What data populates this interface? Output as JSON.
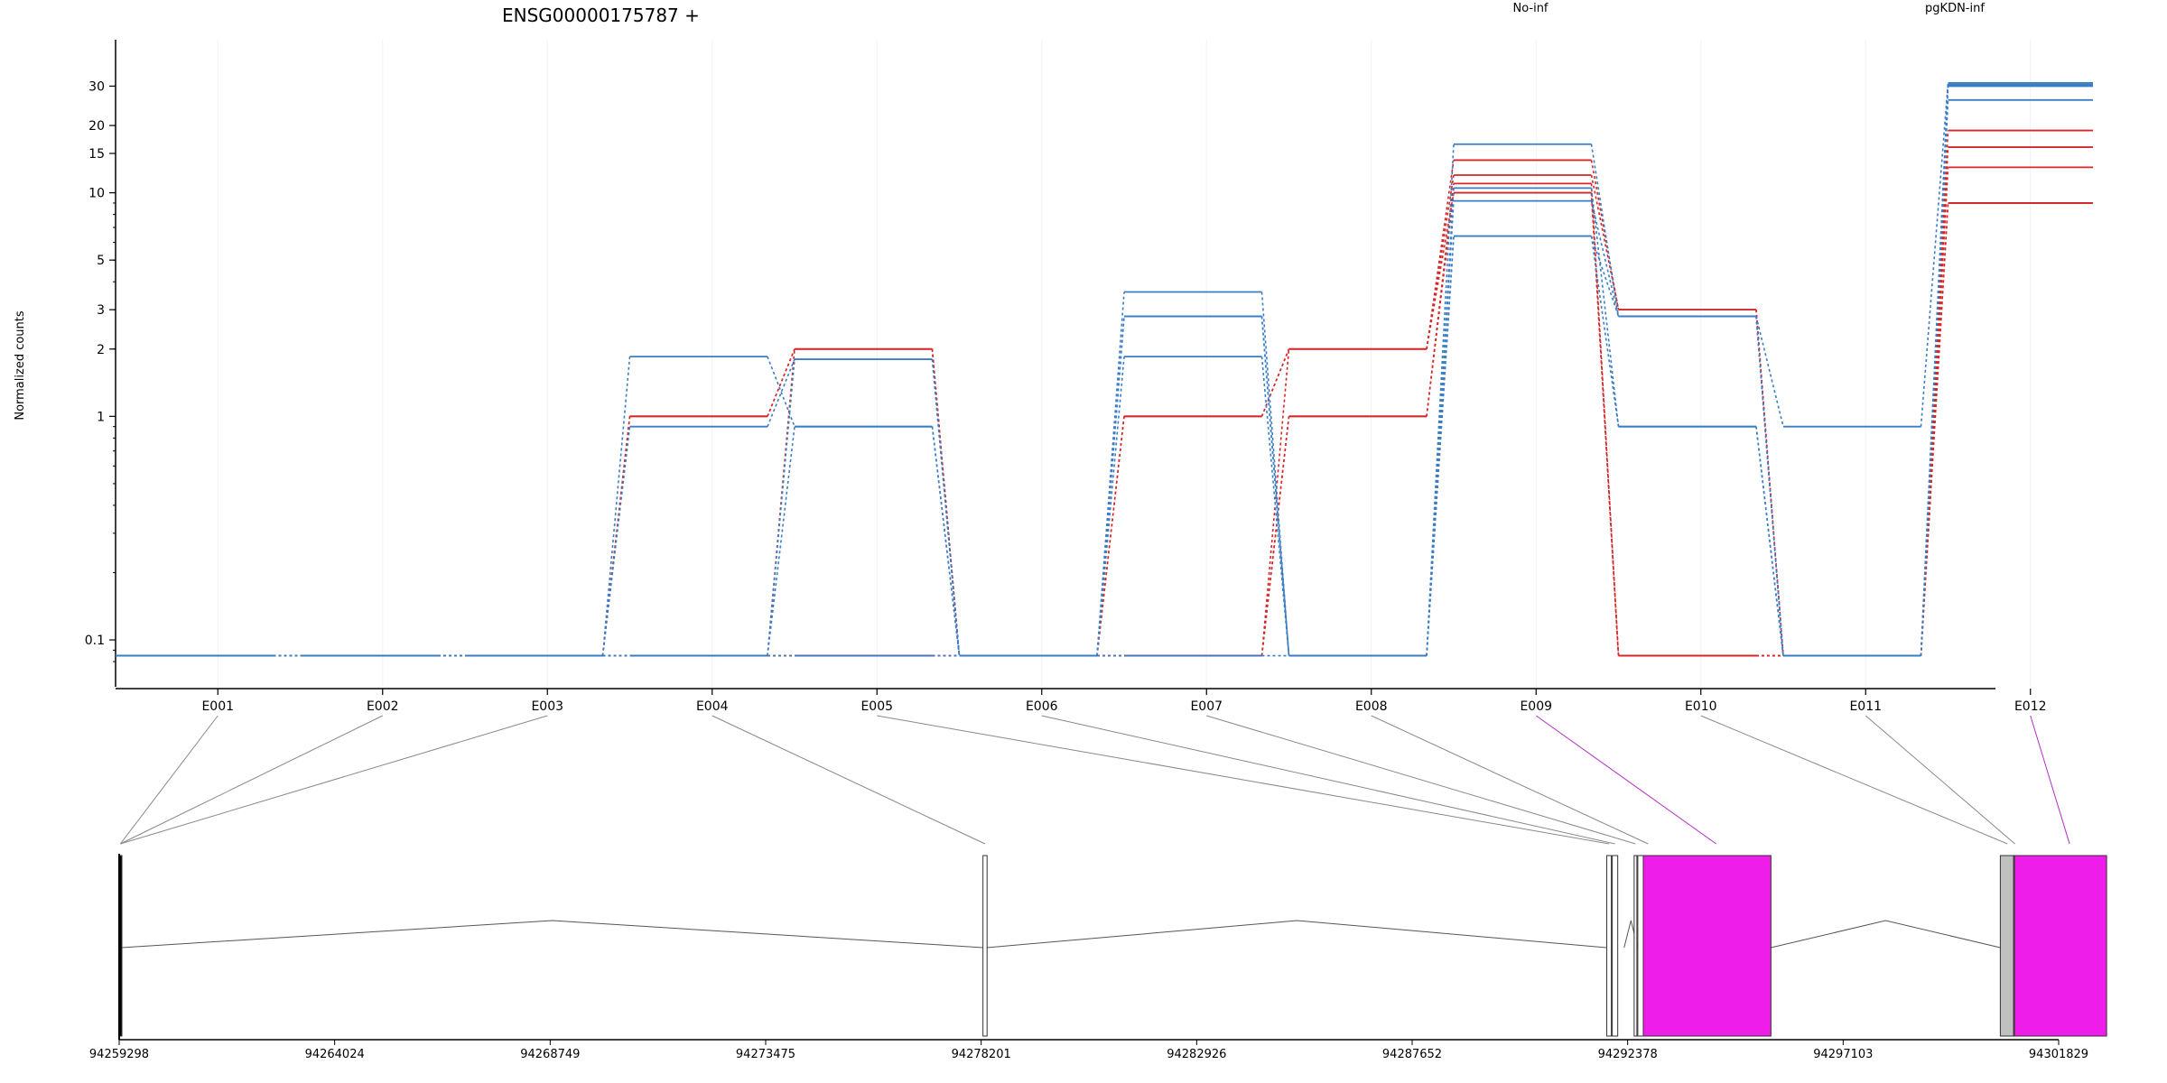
{
  "chart_data": {
    "type": "line",
    "title": "ENSG00000175787 +",
    "ylabel": "Normalized counts",
    "yscale": "log",
    "ylim": [
      0.075,
      38
    ],
    "yticks": [
      0.1,
      1,
      2,
      3,
      5,
      10,
      15,
      20,
      30
    ],
    "ytick_labels": [
      "0.1",
      "1",
      "2",
      "3",
      "5",
      "10",
      "15",
      "20",
      "30"
    ],
    "categories": [
      "E001",
      "E002",
      "E003",
      "E004",
      "E005",
      "E006",
      "E007",
      "E008",
      "E009",
      "E010",
      "E011",
      "E012"
    ],
    "legend": [
      {
        "name": "No-inf",
        "color": "#d62728"
      },
      {
        "name": "pgKDN-inf",
        "color": "#3a7dc4"
      }
    ],
    "series": [
      {
        "group": "No-inf",
        "values": [
          0.085,
          0.085,
          0.085,
          1,
          2,
          0.085,
          1,
          2,
          14,
          3,
          0.085,
          19
        ]
      },
      {
        "group": "No-inf",
        "values": [
          0.085,
          0.085,
          0.085,
          1,
          2,
          0.085,
          1,
          2,
          12,
          3,
          0.085,
          16
        ]
      },
      {
        "group": "No-inf",
        "values": [
          0.085,
          0.085,
          0.085,
          0.085,
          2,
          0.085,
          0.085,
          1,
          11,
          0.085,
          0.085,
          13
        ]
      },
      {
        "group": "No-inf",
        "values": [
          0.085,
          0.085,
          0.085,
          0.085,
          0.085,
          0.085,
          0.085,
          1,
          10,
          0.085,
          0.085,
          9
        ]
      },
      {
        "group": "No-inf",
        "values": [
          0.085,
          0.085,
          0.085,
          0.085,
          0.085,
          0.085,
          0.085,
          2,
          10,
          0.085,
          0.085,
          9
        ]
      },
      {
        "group": "pgKDN-inf",
        "values": [
          0.085,
          0.085,
          0.085,
          1.85,
          0.9,
          0.085,
          3.6,
          0.085,
          16.5,
          2.8,
          0.9,
          31
        ]
      },
      {
        "group": "pgKDN-inf",
        "values": [
          0.085,
          0.085,
          0.085,
          0.9,
          1.8,
          0.085,
          2.8,
          0.085,
          9.2,
          2.8,
          0.085,
          30
        ]
      },
      {
        "group": "pgKDN-inf",
        "values": [
          0.085,
          0.085,
          0.085,
          0.085,
          1.8,
          0.085,
          1.85,
          0.085,
          6.4,
          0.9,
          0.085,
          30.5
        ]
      },
      {
        "group": "pgKDN-inf",
        "values": [
          0.085,
          0.085,
          0.085,
          0.085,
          0.9,
          0.085,
          2.8,
          0.085,
          6.4,
          2.8,
          0.085,
          26
        ]
      },
      {
        "group": "pgKDN-inf",
        "values": [
          0.085,
          0.085,
          0.085,
          0.085,
          0.085,
          0.085,
          0.085,
          0.085,
          10.5,
          0.9,
          0.085,
          31
        ]
      }
    ],
    "gene_model": {
      "axis_ticks": [
        "94259298",
        "94264024",
        "94268749",
        "94273475",
        "94278201",
        "94282926",
        "94287652",
        "94292378",
        "94297103",
        "94301829"
      ],
      "genomic_range": [
        94259298,
        94301829
      ],
      "exons": [
        {
          "id": "E001",
          "start": 94259298,
          "end": 94259350,
          "fill": "#000000"
        },
        {
          "id": "E002",
          "start": 94259298,
          "end": 94259350,
          "fill": "#000000"
        },
        {
          "id": "E003",
          "start": 94259298,
          "end": 94259350,
          "fill": "#000000"
        },
        {
          "id": "E004",
          "start": 94278240,
          "end": 94278330,
          "fill": "#ffffff"
        },
        {
          "id": "E005",
          "start": 94291920,
          "end": 94292020,
          "fill": "#ffffff"
        },
        {
          "id": "E006",
          "start": 94292040,
          "end": 94292160,
          "fill": "#ffffff"
        },
        {
          "id": "E007",
          "start": 94292520,
          "end": 94292580,
          "fill": "#ffffff"
        },
        {
          "id": "E008",
          "start": 94292600,
          "end": 94293050,
          "fill": "#ffffff"
        },
        {
          "id": "E009",
          "start": 94292720,
          "end": 94295520,
          "fill": "#ee1de9"
        },
        {
          "id": "E010",
          "start": 94300550,
          "end": 94300860,
          "fill": "#c0c0c0"
        },
        {
          "id": "E011",
          "start": 94300840,
          "end": 94300900,
          "fill": "#c0c0c0"
        },
        {
          "id": "E012",
          "start": 94300860,
          "end": 94302880,
          "fill": "#ee1de9"
        }
      ],
      "highlight_color": "#b030c0",
      "connector_color": "#888888"
    }
  }
}
